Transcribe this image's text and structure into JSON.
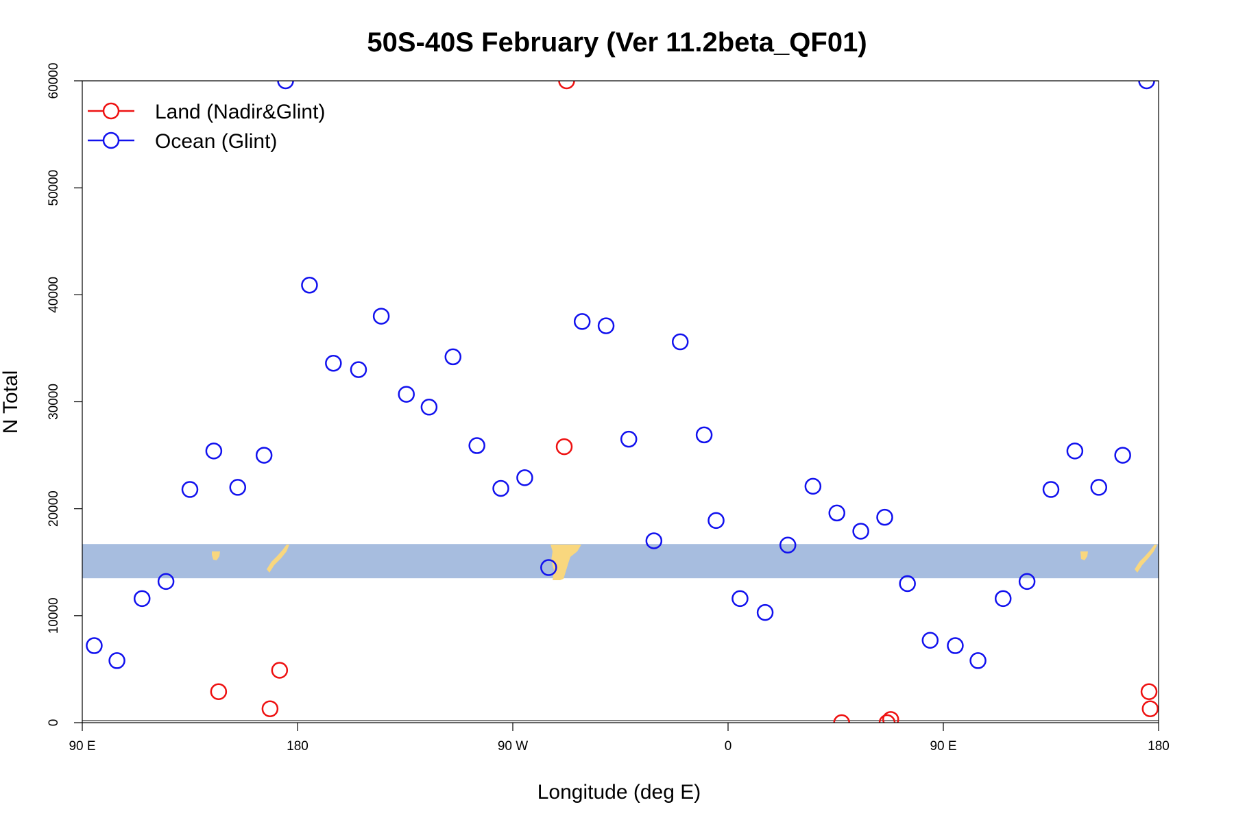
{
  "chart_data": {
    "type": "scatter",
    "title": "50S-40S February (Ver 11.2beta_QF01)",
    "xlabel": "Longitude (deg E)",
    "ylabel": "N Total",
    "xlim": [
      90,
      540
    ],
    "ylim": [
      0,
      60000
    ],
    "x_ticks": [
      {
        "value": 90,
        "label": "90 E"
      },
      {
        "value": 180,
        "label": "180"
      },
      {
        "value": 270,
        "label": "90 W"
      },
      {
        "value": 360,
        "label": "0"
      },
      {
        "value": 450,
        "label": "90 E"
      },
      {
        "value": 540,
        "label": "180"
      }
    ],
    "y_ticks": [
      {
        "value": 0,
        "label": "0"
      },
      {
        "value": 10000,
        "label": "10000"
      },
      {
        "value": 20000,
        "label": "20000"
      },
      {
        "value": 30000,
        "label": "30000"
      },
      {
        "value": 40000,
        "label": "40000"
      },
      {
        "value": 50000,
        "label": "50000"
      },
      {
        "value": 60000,
        "label": "60000"
      }
    ],
    "legend_position": "top-left",
    "grid": false,
    "background_map": {
      "band_y_range": [
        13500,
        16700
      ],
      "ocean_color": "#a7bddf",
      "land_color": "#f9d77e"
    },
    "series": [
      {
        "name": "Land (Nadir&Glint)",
        "color": "#ee1111",
        "x": [
          147,
          168.5,
          172.5,
          291.5,
          292.5,
          407.5,
          426.5,
          428,
          536,
          536.5,
          549,
          552
        ],
        "y": [
          2900,
          1300,
          4900,
          25800,
          60000,
          0,
          0,
          300,
          2900,
          1300,
          4900,
          60000
        ]
      },
      {
        "name": "Ocean (Glint)",
        "color": "#1111ee",
        "x": [
          95,
          104.5,
          115,
          125,
          135,
          145,
          155,
          166,
          175,
          185,
          195,
          205.5,
          215,
          225.5,
          235,
          245,
          255,
          265,
          275,
          285,
          299,
          309,
          318.5,
          329,
          340,
          350,
          355,
          365,
          375.5,
          385,
          395.5,
          405.5,
          415.5,
          425.5,
          435,
          444.5,
          455,
          464.5,
          475,
          485,
          495,
          505,
          515,
          525,
          535,
          545
        ],
        "y": [
          7200,
          5800,
          11600,
          13200,
          21800,
          25400,
          22000,
          25000,
          60000,
          40900,
          33600,
          33000,
          38000,
          30700,
          29500,
          34200,
          25900,
          21900,
          22900,
          14500,
          37500,
          37100,
          26500,
          17000,
          35600,
          26900,
          18900,
          11600,
          10300,
          16600,
          22100,
          19600,
          17900,
          19200,
          13000,
          7700,
          7200,
          5800,
          11600,
          13200,
          21800,
          25400,
          22000,
          25000,
          60000,
          60000
        ]
      }
    ]
  }
}
